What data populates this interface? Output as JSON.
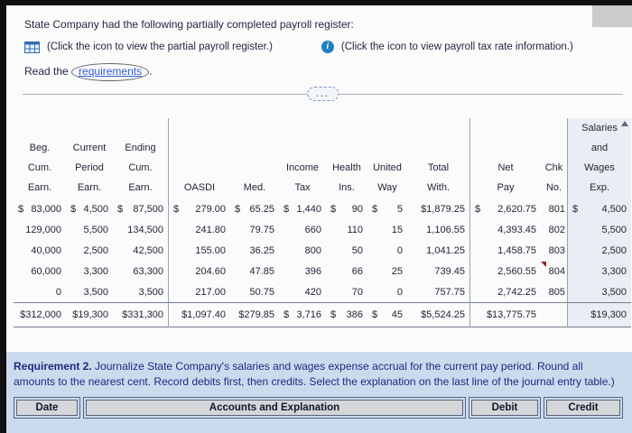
{
  "intro": {
    "line1": "State Company had the following partially completed payroll register:",
    "register_icon_caption": "(Click the icon to view the partial payroll register.)",
    "tax_icon_caption": "(Click the icon to view payroll tax rate information.)",
    "read_prefix": "Read the ",
    "requirements_link": "requirements",
    "read_suffix": "."
  },
  "icons": {
    "register_icon": "table-grid-icon",
    "tax_info_icon": "info-icon",
    "expander": "ellipsis-expander",
    "scroll_up": "scroll-up-arrow",
    "flag": "red-flag-marker"
  },
  "divider": {
    "ellipsis": "..."
  },
  "payroll_table": {
    "headers": [
      {
        "lines": [
          "",
          "Beg.",
          "Cum.",
          "Earn."
        ]
      },
      {
        "lines": [
          "",
          "Current",
          "Period",
          "Earn."
        ]
      },
      {
        "lines": [
          "",
          "Ending",
          "Cum.",
          "Earn."
        ]
      },
      {
        "lines": [
          "",
          "",
          "",
          "OASDI"
        ]
      },
      {
        "lines": [
          "",
          "",
          "",
          "Med."
        ]
      },
      {
        "lines": [
          "",
          "",
          "Income",
          "Tax"
        ]
      },
      {
        "lines": [
          "",
          "",
          "Health",
          "Ins."
        ]
      },
      {
        "lines": [
          "",
          "",
          "United",
          "Way"
        ]
      },
      {
        "lines": [
          "",
          "",
          "Total",
          "With."
        ]
      },
      {
        "lines": [
          "",
          "",
          "Net",
          "Pay"
        ]
      },
      {
        "lines": [
          "",
          "",
          "Chk",
          "No."
        ]
      },
      {
        "lines": [
          "Salaries",
          "and",
          "Wages",
          "Exp."
        ]
      }
    ],
    "rows": [
      [
        {
          "d": "$",
          "v": "83,000"
        },
        {
          "d": "$",
          "v": "4,500"
        },
        {
          "d": "$",
          "v": "87,500"
        },
        {
          "d": "$",
          "v": "279.00"
        },
        {
          "d": "$",
          "v": "65.25"
        },
        {
          "d": "$",
          "v": "1,440"
        },
        {
          "d": "$",
          "v": "90"
        },
        {
          "d": "$",
          "v": "5"
        },
        {
          "d": "",
          "v": "$1,879.25"
        },
        {
          "d": "$",
          "v": "2,620.75"
        },
        {
          "d": "",
          "v": "801"
        },
        {
          "d": "$",
          "v": "4,500"
        }
      ],
      [
        {
          "d": "",
          "v": "129,000"
        },
        {
          "d": "",
          "v": "5,500"
        },
        {
          "d": "",
          "v": "134,500"
        },
        {
          "d": "",
          "v": "241.80"
        },
        {
          "d": "",
          "v": "79.75"
        },
        {
          "d": "",
          "v": "660"
        },
        {
          "d": "",
          "v": "110"
        },
        {
          "d": "",
          "v": "15"
        },
        {
          "d": "",
          "v": "1,106.55"
        },
        {
          "d": "",
          "v": "4,393.45"
        },
        {
          "d": "",
          "v": "802"
        },
        {
          "d": "",
          "v": "5,500"
        }
      ],
      [
        {
          "d": "",
          "v": "40,000"
        },
        {
          "d": "",
          "v": "2,500"
        },
        {
          "d": "",
          "v": "42,500"
        },
        {
          "d": "",
          "v": "155.00"
        },
        {
          "d": "",
          "v": "36.25"
        },
        {
          "d": "",
          "v": "800"
        },
        {
          "d": "",
          "v": "50"
        },
        {
          "d": "",
          "v": "0"
        },
        {
          "d": "",
          "v": "1,041.25"
        },
        {
          "d": "",
          "v": "1,458.75"
        },
        {
          "d": "",
          "v": "803"
        },
        {
          "d": "",
          "v": "2,500"
        }
      ],
      [
        {
          "d": "",
          "v": "60,000"
        },
        {
          "d": "",
          "v": "3,300"
        },
        {
          "d": "",
          "v": "63,300"
        },
        {
          "d": "",
          "v": "204.60"
        },
        {
          "d": "",
          "v": "47.85"
        },
        {
          "d": "",
          "v": "396"
        },
        {
          "d": "",
          "v": "66"
        },
        {
          "d": "",
          "v": "25"
        },
        {
          "d": "",
          "v": "739.45"
        },
        {
          "d": "",
          "v": "2,560.55"
        },
        {
          "d": "",
          "v": "804"
        },
        {
          "d": "",
          "v": "3,300"
        }
      ],
      [
        {
          "d": "",
          "v": "0"
        },
        {
          "d": "",
          "v": "3,500"
        },
        {
          "d": "",
          "v": "3,500"
        },
        {
          "d": "",
          "v": "217.00"
        },
        {
          "d": "",
          "v": "50.75"
        },
        {
          "d": "",
          "v": "420"
        },
        {
          "d": "",
          "v": "70"
        },
        {
          "d": "",
          "v": "0"
        },
        {
          "d": "",
          "v": "757.75"
        },
        {
          "d": "",
          "v": "2,742.25"
        },
        {
          "d": "",
          "v": "805"
        },
        {
          "d": "",
          "v": "3,500"
        }
      ]
    ],
    "totals": [
      {
        "d": "",
        "v": "$312,000"
      },
      {
        "d": "",
        "v": "$19,300"
      },
      {
        "d": "",
        "v": "$331,300"
      },
      {
        "d": "",
        "v": "$1,097.40"
      },
      {
        "d": "",
        "v": "$279.85"
      },
      {
        "d": "$",
        "v": "3,716"
      },
      {
        "d": "$",
        "v": "386"
      },
      {
        "d": "$",
        "v": "45"
      },
      {
        "d": "",
        "v": "$5,524.25"
      },
      {
        "d": "",
        "v": "$13,775.75"
      },
      {
        "d": "",
        "v": ""
      },
      {
        "d": "",
        "v": "$19,300"
      }
    ]
  },
  "requirement": {
    "title": "Requirement 2.",
    "text": "Journalize State Company's salaries and wages expense accrual for the current pay period. Round all amounts to the nearest cent. Record debits first, then credits. Select the explanation on the last line of the journal entry table.)"
  },
  "journal": {
    "columns": [
      "Date",
      "Accounts and Explanation",
      "Debit",
      "Credit"
    ]
  }
}
